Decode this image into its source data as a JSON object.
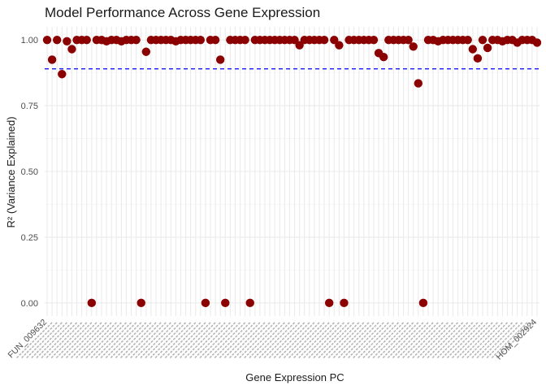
{
  "chart_data": {
    "type": "scatter",
    "title": "Model Performance Across Gene Expression",
    "xlabel": "Gene Expression PC",
    "ylabel": "R² (Variance Explained)",
    "ylim": [
      -0.05,
      1.05
    ],
    "yticks": [
      0.0,
      0.25,
      0.5,
      0.75,
      1.0
    ],
    "ytick_labels": [
      "0.00",
      "0.25",
      "0.50",
      "0.75",
      "1.00"
    ],
    "reference_line": {
      "y": 0.89,
      "style": "dashed",
      "color": "#0000ff"
    },
    "point_color": "#8b0000",
    "grid": true,
    "x_count": 100,
    "x_tick_labels_legible": [
      "FUN_009632",
      "HOM_002924"
    ],
    "values": [
      1.0,
      0.925,
      1.0,
      0.87,
      0.995,
      0.965,
      1.0,
      1.0,
      1.0,
      0.0,
      1.0,
      1.0,
      0.995,
      1.0,
      1.0,
      0.995,
      1.0,
      1.0,
      1.0,
      0.0,
      0.955,
      1.0,
      1.0,
      1.0,
      1.0,
      1.0,
      0.995,
      1.0,
      1.0,
      1.0,
      1.0,
      1.0,
      0.0,
      1.0,
      1.0,
      0.925,
      0.0,
      1.0,
      1.0,
      1.0,
      1.0,
      0.0,
      1.0,
      1.0,
      1.0,
      1.0,
      1.0,
      1.0,
      1.0,
      1.0,
      1.0,
      0.98,
      1.0,
      1.0,
      1.0,
      1.0,
      1.0,
      0.0,
      1.0,
      0.98,
      0.0,
      1.0,
      1.0,
      1.0,
      1.0,
      1.0,
      1.0,
      0.95,
      0.935,
      1.0,
      1.0,
      1.0,
      1.0,
      1.0,
      0.975,
      0.835,
      0.0,
      1.0,
      1.0,
      0.995,
      1.0,
      1.0,
      1.0,
      1.0,
      1.0,
      1.0,
      0.965,
      0.93,
      1.0,
      0.97,
      1.0,
      1.0,
      0.995,
      1.0,
      1.0,
      0.99,
      1.0,
      1.0,
      1.0,
      0.99
    ]
  }
}
